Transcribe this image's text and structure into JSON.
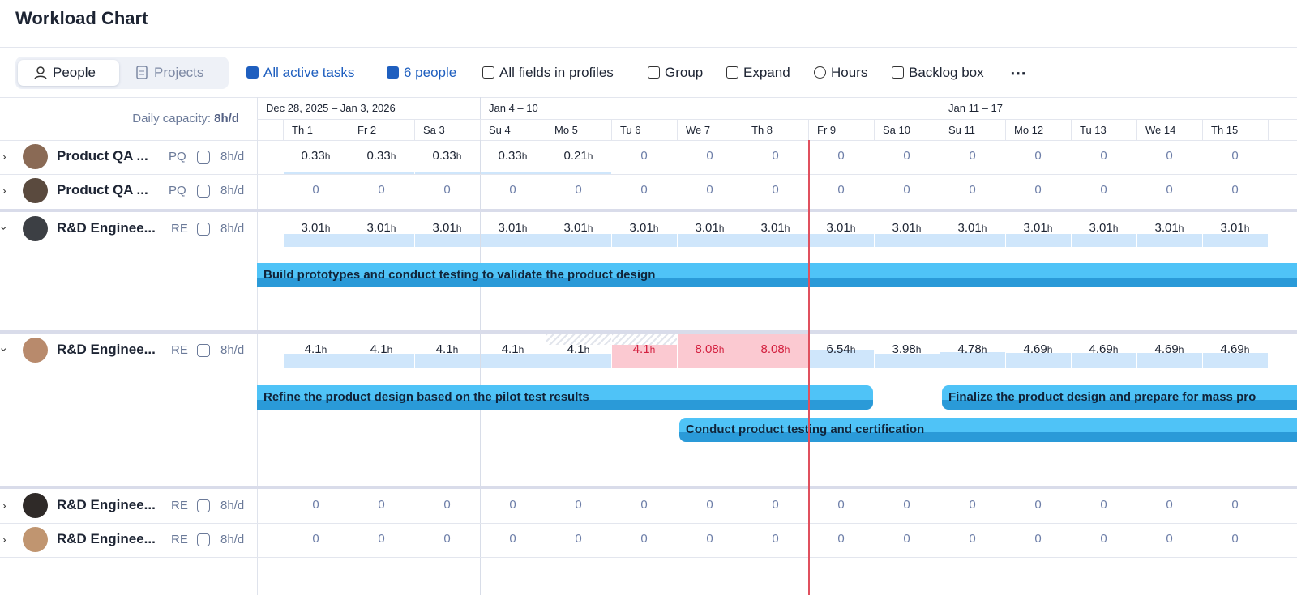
{
  "header": {
    "title": "Workload Chart"
  },
  "toolbar": {
    "tabs": [
      "People",
      "Projects"
    ],
    "filters": [
      "All active tasks",
      "6 people",
      "All fields in profiles",
      "Group",
      "Expand",
      "Hours",
      "Backlog box"
    ]
  },
  "capacity": {
    "label": "Daily capacity:",
    "value": "8h/d"
  },
  "weeks": [
    "Dec 28, 2025 – Jan 3, 2026",
    "Jan 4 – 10",
    "Jan 11 – 17"
  ],
  "days": [
    "Th 1",
    "Fr 2",
    "Sa 3",
    "Su 4",
    "Mo 5",
    "Tu 6",
    "We 7",
    "Th 8",
    "Fr 9",
    "Sa 10",
    "Su 11",
    "Mo 12",
    "Tu 13",
    "We 14",
    "Th 15"
  ],
  "unit": "h",
  "rows": [
    {
      "name": "Product QA ...",
      "initials": "PQ",
      "capacity": "8h/d",
      "expanded": false,
      "hours": [
        0.33,
        0.33,
        0.33,
        0.33,
        0.21,
        0,
        0,
        0,
        0,
        0,
        0,
        0,
        0,
        0,
        0
      ],
      "tasks": []
    },
    {
      "name": "Product QA ...",
      "initials": "PQ",
      "capacity": "8h/d",
      "expanded": false,
      "hours": [
        0,
        0,
        0,
        0,
        0,
        0,
        0,
        0,
        0,
        0,
        0,
        0,
        0,
        0,
        0
      ],
      "tasks": []
    },
    {
      "name": "R&D Enginee...",
      "initials": "RE",
      "capacity": "8h/d",
      "expanded": true,
      "hours": [
        3.01,
        3.01,
        3.01,
        3.01,
        3.01,
        3.01,
        3.01,
        3.01,
        3.01,
        3.01,
        3.01,
        3.01,
        3.01,
        3.01,
        3.01
      ],
      "tasks": [
        "Build prototypes and conduct testing to validate the product design"
      ]
    },
    {
      "name": "R&D Enginee...",
      "initials": "RE",
      "capacity": "8h/d",
      "expanded": true,
      "hours": [
        4.1,
        4.1,
        4.1,
        4.1,
        4.1,
        4.1,
        8.08,
        8.08,
        6.54,
        3.98,
        4.78,
        4.69,
        4.69,
        4.69,
        4.69
      ],
      "status": [
        "ok",
        "ok",
        "ok",
        "ok",
        "partial",
        "partial-over",
        "over",
        "over",
        "ok",
        "ok",
        "ok",
        "ok",
        "ok",
        "ok",
        "ok"
      ],
      "tasks": [
        "Refine the product design based on the pilot test results",
        "Finalize the product design and prepare for mass pro",
        "Conduct product testing and certification"
      ]
    },
    {
      "name": "R&D Enginee...",
      "initials": "RE",
      "capacity": "8h/d",
      "expanded": false,
      "hours": [
        0,
        0,
        0,
        0,
        0,
        0,
        0,
        0,
        0,
        0,
        0,
        0,
        0,
        0,
        0
      ],
      "tasks": []
    },
    {
      "name": "R&D Enginee...",
      "initials": "RE",
      "capacity": "8h/d",
      "expanded": false,
      "hours": [
        0,
        0,
        0,
        0,
        0,
        0,
        0,
        0,
        0,
        0,
        0,
        0,
        0,
        0,
        0
      ],
      "tasks": []
    }
  ]
}
